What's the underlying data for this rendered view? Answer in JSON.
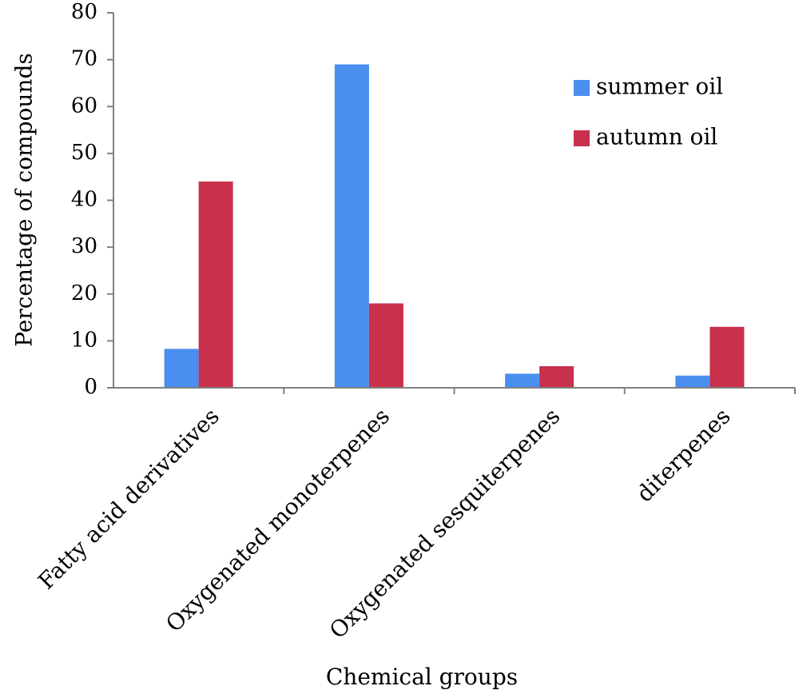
{
  "chart_data": {
    "type": "bar",
    "title": "",
    "xlabel": "Chemical groups",
    "ylabel": "Percentage of compounds",
    "ylim": [
      0,
      80
    ],
    "yticks": [
      0,
      10,
      20,
      30,
      40,
      50,
      60,
      70,
      80
    ],
    "grid": false,
    "legend_position": "top-right",
    "categories": [
      "Fatty acid derivatives",
      "Oxygenated monoterpenes",
      "Oxygenated sesquiterpenes",
      "diterpenes"
    ],
    "series": [
      {
        "name": "summer oil",
        "color": "#4a8ef0",
        "values": [
          8.3,
          69,
          3,
          2.6
        ]
      },
      {
        "name": "autumn oil",
        "color": "#c8304c",
        "values": [
          44,
          18,
          4.6,
          13
        ]
      }
    ]
  }
}
